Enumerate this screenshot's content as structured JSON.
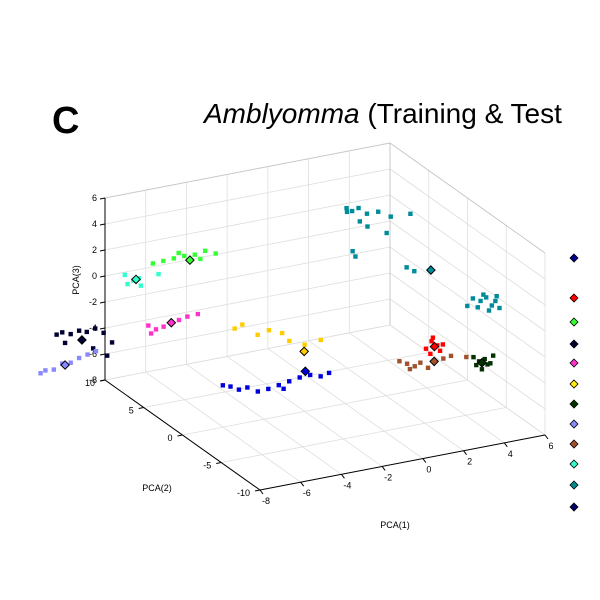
{
  "panel_label": "C",
  "title": {
    "italic": "Amblyomma",
    "rest": " (Training & Test"
  },
  "chart_data": {
    "type": "scatter",
    "projection": "3d",
    "grid": true,
    "xlabel": "PCA(1)",
    "ylabel": "PCA(2)",
    "zlabel": "PCA(3)",
    "xlim": [
      -8,
      6
    ],
    "ylim": [
      -10,
      10
    ],
    "zlim": [
      -8,
      6
    ],
    "xticks": [
      "-8",
      "-6",
      "-4",
      "-2",
      "0",
      "2",
      "4",
      "6"
    ],
    "yticks": [
      "-10",
      "-5",
      "0",
      "5",
      "10"
    ],
    "zticks": [
      "-8",
      "-6",
      "-4",
      "-2",
      "0",
      "2",
      "4",
      "6"
    ],
    "legend_location": "right (cropped)",
    "legend_markers": [
      "#00008b",
      "#ff0000",
      "#33ff33",
      "#000033",
      "#ff33cc",
      "#ffee00",
      "#003300",
      "#8888ff",
      "#a0522d",
      "#33ffcc",
      "#008b8b",
      "#000066"
    ],
    "series": [
      {
        "color": "#008b9b",
        "points": [
          [
            1.2,
            3.0,
            5.4
          ],
          [
            1.4,
            2.8,
            5.2
          ],
          [
            1.3,
            3.2,
            5.0
          ],
          [
            1.6,
            2.5,
            5.5
          ],
          [
            1.9,
            2.2,
            5.1
          ],
          [
            2.3,
            1.8,
            5.3
          ],
          [
            2.8,
            1.5,
            4.9
          ],
          [
            3.5,
            0.8,
            5.2
          ],
          [
            1.7,
            2.6,
            4.4
          ],
          [
            2.0,
            2.4,
            4.0
          ],
          [
            2.6,
            1.5,
            3.7
          ],
          [
            1.5,
            3.0,
            2.0
          ],
          [
            1.6,
            2.9,
            1.6
          ],
          [
            3.2,
            0.5,
            1.3
          ],
          [
            3.5,
            0.3,
            1.0
          ],
          [
            5.2,
            -2.8,
            -0.3
          ],
          [
            5.5,
            -3.0,
            -0.5
          ],
          [
            5.7,
            -3.2,
            -0.2
          ],
          [
            5.9,
            -3.4,
            -0.8
          ],
          [
            6.0,
            -3.6,
            -0.4
          ],
          [
            5.4,
            -2.9,
            -1.0
          ],
          [
            5.8,
            -3.3,
            -1.2
          ],
          [
            6.2,
            -3.6,
            -1.0
          ],
          [
            5.0,
            -2.6,
            -0.9
          ],
          [
            5.6,
            -3.1,
            0.0
          ],
          [
            6.1,
            -3.5,
            -0.1
          ]
        ]
      },
      {
        "color": "#ff0000",
        "points": [
          [
            3.4,
            -2.2,
            -3.3
          ],
          [
            3.6,
            -2.4,
            -3.6
          ],
          [
            3.2,
            -2.0,
            -3.9
          ],
          [
            3.8,
            -2.6,
            -3.5
          ],
          [
            3.3,
            -2.3,
            -4.2
          ],
          [
            3.7,
            -2.5,
            -4.0
          ],
          [
            3.5,
            -2.1,
            -3.1
          ]
        ]
      },
      {
        "color": "#a0522d",
        "points": [
          [
            2.2,
            -1.2,
            -4.9
          ],
          [
            2.5,
            -1.4,
            -5.1
          ],
          [
            2.8,
            -1.6,
            -5.3
          ],
          [
            3.0,
            -1.8,
            -5.0
          ],
          [
            3.3,
            -2.0,
            -5.4
          ],
          [
            3.9,
            -2.4,
            -4.7
          ],
          [
            4.2,
            -2.6,
            -4.5
          ],
          [
            4.8,
            -3.0,
            -4.6
          ],
          [
            2.6,
            -1.5,
            -5.5
          ]
        ]
      },
      {
        "color": "#003300",
        "points": [
          [
            5.0,
            -3.4,
            -4.5
          ],
          [
            5.2,
            -3.6,
            -4.8
          ],
          [
            5.4,
            -3.8,
            -4.6
          ],
          [
            5.1,
            -3.5,
            -5.1
          ],
          [
            5.5,
            -3.9,
            -5.0
          ],
          [
            5.3,
            -3.7,
            -5.4
          ],
          [
            5.6,
            -4.0,
            -4.9
          ],
          [
            5.7,
            -4.1,
            -4.3
          ]
        ]
      },
      {
        "color": "#ffcc00",
        "points": [
          [
            -3.8,
            4.3,
            -2.9
          ],
          [
            -3.5,
            4.1,
            -2.6
          ],
          [
            -2.9,
            3.7,
            -3.4
          ],
          [
            -2.5,
            3.3,
            -3.0
          ],
          [
            -2.0,
            2.9,
            -3.2
          ],
          [
            -1.8,
            2.5,
            -3.7
          ],
          [
            -1.2,
            2.1,
            -4.0
          ],
          [
            -0.6,
            1.6,
            -3.6
          ]
        ]
      },
      {
        "color": "#0000dd",
        "points": [
          [
            -4.8,
            3.2,
            -6.5
          ],
          [
            -4.5,
            3.0,
            -6.6
          ],
          [
            -4.2,
            2.7,
            -6.8
          ],
          [
            -3.9,
            2.4,
            -6.6
          ],
          [
            -3.5,
            2.1,
            -6.9
          ],
          [
            -3.1,
            1.8,
            -6.7
          ],
          [
            -2.7,
            1.5,
            -6.4
          ],
          [
            -2.3,
            1.2,
            -6.1
          ],
          [
            -1.9,
            0.9,
            -5.8
          ],
          [
            -1.5,
            0.6,
            -5.6
          ],
          [
            -1.1,
            0.3,
            -5.7
          ],
          [
            -0.8,
            0.0,
            -5.4
          ],
          [
            -2.5,
            1.4,
            -6.7
          ]
        ]
      },
      {
        "color": "#33ff33",
        "points": [
          [
            -6.6,
            7.5,
            1.6
          ],
          [
            -6.2,
            7.2,
            1.8
          ],
          [
            -5.8,
            6.9,
            2.0
          ],
          [
            -5.4,
            6.6,
            2.2
          ],
          [
            -5.0,
            6.3,
            2.3
          ],
          [
            -4.6,
            6.0,
            2.6
          ],
          [
            -4.2,
            5.7,
            2.4
          ],
          [
            -5.6,
            6.8,
            2.4
          ],
          [
            -4.8,
            6.1,
            2.0
          ]
        ]
      },
      {
        "color": "#33ffcc",
        "points": [
          [
            -7.3,
            8.2,
            0.2
          ],
          [
            -7.5,
            8.4,
            -0.1
          ],
          [
            -7.1,
            8.0,
            0.4
          ],
          [
            -7.6,
            8.5,
            0.6
          ],
          [
            -7.0,
            8.0,
            -0.2
          ],
          [
            -6.4,
            7.3,
            0.8
          ]
        ]
      },
      {
        "color": "#ff33cc",
        "points": [
          [
            -6.9,
            7.3,
            -3.0
          ],
          [
            -6.6,
            7.1,
            -3.3
          ],
          [
            -6.3,
            6.9,
            -3.1
          ],
          [
            -6.0,
            6.7,
            -2.8
          ],
          [
            -5.7,
            6.5,
            -2.6
          ],
          [
            -5.4,
            6.2,
            -2.3
          ],
          [
            -5.0,
            5.9,
            -2.1
          ],
          [
            -6.8,
            7.2,
            -3.6
          ]
        ]
      },
      {
        "color": "#000033",
        "points": [
          [
            -10.3,
            10.2,
            -3.9
          ],
          [
            -10.1,
            10.0,
            -3.7
          ],
          [
            -9.8,
            9.7,
            -3.8
          ],
          [
            -9.5,
            9.4,
            -3.5
          ],
          [
            -9.2,
            9.2,
            -3.6
          ],
          [
            -8.9,
            8.9,
            -3.3
          ],
          [
            -8.6,
            8.6,
            -3.6
          ],
          [
            -8.3,
            8.3,
            -4.3
          ],
          [
            -10.0,
            9.9,
            -4.5
          ],
          [
            -9.0,
            8.9,
            -4.8
          ],
          [
            -8.5,
            8.4,
            -5.3
          ]
        ]
      },
      {
        "color": "#8888ff",
        "points": [
          [
            -10.7,
            10.6,
            -6.7
          ],
          [
            -10.4,
            10.3,
            -6.6
          ],
          [
            -10.1,
            10.0,
            -6.1
          ],
          [
            -9.8,
            9.7,
            -6.0
          ],
          [
            -9.5,
            9.4,
            -5.6
          ],
          [
            -9.2,
            9.1,
            -5.3
          ],
          [
            -8.9,
            8.8,
            -5.0
          ],
          [
            -10.9,
            10.7,
            -6.9
          ]
        ]
      }
    ],
    "centroids": [
      {
        "color": "#33ffcc",
        "point": [
          -7.2,
          8.1,
          0.3
        ]
      },
      {
        "color": "#33ff33",
        "point": [
          -5.2,
          6.4,
          1.9
        ]
      },
      {
        "color": "#ff33cc",
        "point": [
          -6.0,
          6.7,
          -2.8
        ]
      },
      {
        "color": "#000033",
        "point": [
          -9.4,
          9.3,
          -4.2
        ]
      },
      {
        "color": "#8888ff",
        "point": [
          -10.0,
          9.9,
          -6.2
        ]
      },
      {
        "color": "#ffcc00",
        "point": [
          -1.3,
          1.9,
          -4.4
        ]
      },
      {
        "color": "#0000dd",
        "point": [
          -1.7,
          0.7,
          -5.3
        ]
      },
      {
        "color": "#008b9b",
        "point": [
          4.2,
          0.0,
          1.0
        ]
      },
      {
        "color": "#a0522d",
        "point": [
          3.6,
          -2.0,
          -5.0
        ]
      },
      {
        "color": "#003300",
        "point": [
          5.3,
          -3.7,
          -4.9
        ]
      },
      {
        "color": "#ff0000",
        "point": [
          3.5,
          -2.3,
          -3.7
        ]
      }
    ]
  }
}
